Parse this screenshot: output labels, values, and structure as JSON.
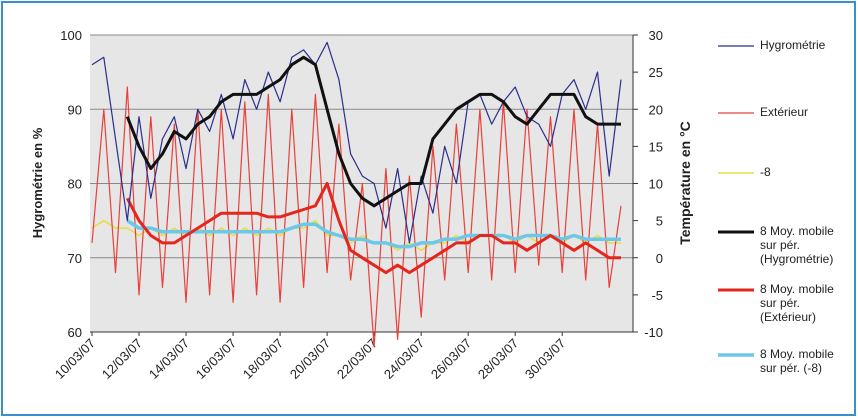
{
  "chart_data": {
    "type": "line",
    "categories": [
      "10/03/07",
      null,
      null,
      null,
      "12/03/07",
      null,
      null,
      null,
      "14/03/07",
      null,
      null,
      null,
      "16/03/07",
      null,
      null,
      null,
      "18/03/07",
      null,
      null,
      null,
      "20/03/07",
      null,
      null,
      null,
      "22/03/07",
      null,
      null,
      null,
      "24/03/07",
      null,
      null,
      null,
      "26/03/07",
      null,
      null,
      null,
      "28/03/07",
      null,
      null,
      null,
      "30/03/07",
      null,
      null,
      null,
      null,
      null
    ],
    "ylabel": "Hygrométrie en %",
    "y2label": "Température en °C",
    "ylim": [
      60,
      100
    ],
    "yticks": [
      60,
      70,
      80,
      90,
      100
    ],
    "y2lim": [
      -10,
      30
    ],
    "y2ticks": [
      -10,
      -5,
      0,
      5,
      10,
      15,
      20,
      25,
      30
    ],
    "grid": true,
    "legend": "right",
    "series": [
      {
        "name": "Hygrométrie",
        "color": "#2b2e8c",
        "width": 1.2,
        "values": [
          96,
          97,
          86,
          75,
          89,
          78,
          86,
          89,
          82,
          90,
          87,
          92,
          86,
          94,
          90,
          95,
          91,
          97,
          98,
          96,
          99,
          94,
          84,
          81,
          80,
          74,
          82,
          72,
          81,
          76,
          85,
          80,
          91,
          92,
          88,
          91,
          93,
          89,
          88,
          85,
          92,
          94,
          90,
          95,
          81,
          94
        ]
      },
      {
        "name": "Extérieur",
        "color": "#e8403a",
        "width": 1.2,
        "axis": "y2",
        "values": [
          2,
          20,
          -2,
          23,
          -5,
          19,
          -4,
          18,
          -6,
          20,
          -5,
          20,
          -6,
          21,
          -5,
          22,
          -6,
          20,
          -4,
          22,
          -2,
          18,
          -3,
          10,
          -12,
          12,
          -11,
          11,
          -8,
          15,
          -3,
          18,
          -2,
          20,
          -3,
          21,
          -2,
          20,
          -1,
          19,
          -2,
          20,
          -3,
          18,
          -4,
          7
        ]
      },
      {
        "name": "-8",
        "color": "#e6de3c",
        "width": 1.5,
        "axis": "y2",
        "values": [
          4,
          5,
          4,
          4,
          3,
          4,
          3,
          4,
          3,
          4,
          3,
          4,
          3,
          4,
          3,
          4,
          3,
          4,
          4,
          5,
          3,
          3,
          2,
          3,
          2,
          2,
          1,
          2,
          1,
          2,
          2,
          3,
          2,
          3,
          3,
          3,
          2,
          3,
          2,
          3,
          2,
          3,
          2,
          3,
          2,
          2
        ]
      },
      {
        "name": "8 Moy. mobile sur pér. (Hygrométrie)",
        "color": "#111111",
        "width": 3,
        "values": [
          null,
          null,
          null,
          89,
          85,
          82,
          84,
          87,
          86,
          88,
          89,
          91,
          92,
          92,
          92,
          93,
          94,
          96,
          97,
          96,
          90,
          84,
          80,
          78,
          77,
          78,
          79,
          80,
          80,
          86,
          88,
          90,
          91,
          92,
          92,
          91,
          89,
          88,
          90,
          92,
          92,
          92,
          89,
          88,
          88,
          88
        ]
      },
      {
        "name": "8 Moy. mobile sur pér. (Extérieur)",
        "color": "#e3261e",
        "width": 3,
        "axis": "y2",
        "values": [
          null,
          null,
          null,
          8,
          5,
          3,
          2,
          2,
          3,
          4,
          5,
          6,
          6,
          6,
          6,
          5.5,
          5.5,
          6,
          6.5,
          7,
          10,
          5,
          1,
          0,
          -1,
          -2,
          -1,
          -2,
          -1,
          0,
          1,
          2,
          2,
          3,
          3,
          2,
          2,
          1,
          2,
          3,
          2,
          1,
          2,
          1,
          0,
          0
        ]
      },
      {
        "name": "8 Moy. mobile sur pér. (-8)",
        "color": "#6cc8e8",
        "width": 3.5,
        "axis": "y2",
        "values": [
          null,
          null,
          null,
          5,
          4,
          4,
          3.5,
          3.5,
          3.5,
          3.5,
          3.5,
          3.5,
          3.5,
          3.5,
          3.5,
          3.5,
          3.5,
          4,
          4.5,
          4.5,
          3.5,
          3,
          2.5,
          2.5,
          2,
          2,
          1.5,
          1.5,
          2,
          2,
          2.5,
          2.5,
          3,
          3,
          3,
          3,
          2.5,
          3,
          3,
          3,
          2.5,
          3,
          2.5,
          2.5,
          2.5,
          2.5
        ]
      }
    ]
  }
}
